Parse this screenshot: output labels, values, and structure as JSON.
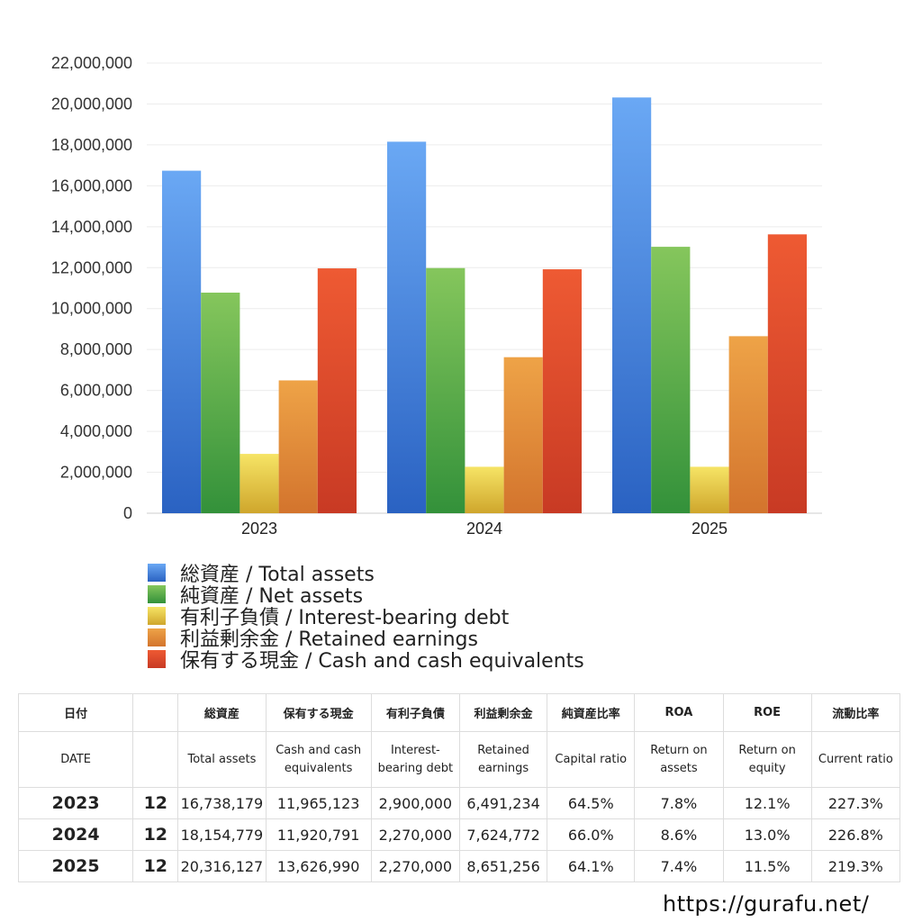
{
  "chart_data": {
    "type": "bar",
    "categories": [
      "2023",
      "2024",
      "2025"
    ],
    "ylim": [
      0,
      22000000
    ],
    "yticks": [
      0,
      2000000,
      4000000,
      6000000,
      8000000,
      10000000,
      12000000,
      14000000,
      16000000,
      18000000,
      20000000,
      22000000
    ],
    "grid": true,
    "legend_position": "bottom",
    "series": [
      {
        "name": "総資産 / Total assets",
        "values": [
          16738179,
          18154779,
          20316127
        ],
        "color_top": "#6aa8f4",
        "color_bottom": "#2a62c2"
      },
      {
        "name": "純資産 / Net assets",
        "values": [
          10780000,
          11980000,
          13020000
        ],
        "color_top": "#85c65c",
        "color_bottom": "#33913a"
      },
      {
        "name": "有利子負債 / Interest-bearing debt",
        "values": [
          2900000,
          2270000,
          2270000
        ],
        "color_top": "#f6e465",
        "color_bottom": "#cfa62c"
      },
      {
        "name": "利益剰余金 / Retained earnings",
        "values": [
          6491234,
          7624772,
          8651256
        ],
        "color_top": "#eea347",
        "color_bottom": "#d3742d"
      },
      {
        "name": "保有する現金 /  Cash and cash equivalents",
        "values": [
          11965123,
          11920791,
          13626990
        ],
        "color_top": "#ee5a33",
        "color_bottom": "#c83a24"
      }
    ]
  },
  "table": {
    "headers_ja": [
      "日付",
      "",
      "総資産",
      "保有する現金",
      "有利子負債",
      "利益剰余金",
      "純資産比率",
      "ROA",
      "ROE",
      "流動比率"
    ],
    "headers_en": [
      "DATE",
      "",
      "Total assets",
      "Cash and cash equivalents",
      "Interest-bearing debt",
      "Retained earnings",
      "Capital ratio",
      "Return on assets",
      "Return on equity",
      "Current ratio"
    ],
    "rows": [
      [
        "2023",
        "12",
        "16,738,179",
        "11,965,123",
        "2,900,000",
        "6,491,234",
        "64.5%",
        "7.8%",
        "12.1%",
        "227.3%"
      ],
      [
        "2024",
        "12",
        "18,154,779",
        "11,920,791",
        "2,270,000",
        "7,624,772",
        "66.0%",
        "8.6%",
        "13.0%",
        "226.8%"
      ],
      [
        "2025",
        "12",
        "20,316,127",
        "13,626,990",
        "2,270,000",
        "8,651,256",
        "64.1%",
        "7.4%",
        "11.5%",
        "219.3%"
      ]
    ]
  },
  "site_url": "https://gurafu.net/"
}
